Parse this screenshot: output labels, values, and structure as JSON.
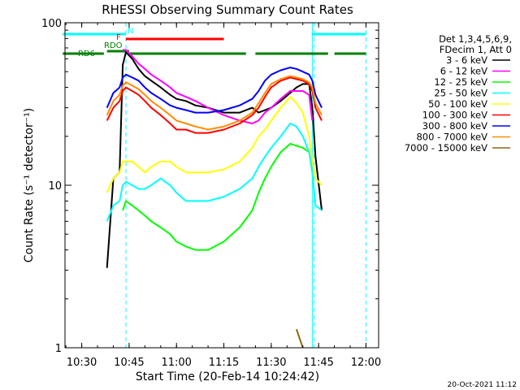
{
  "chart_data": {
    "type": "line",
    "title": "RHESSI Observing Summary Count Rates",
    "xlabel": "Start Time (20-Feb-14 10:24:42)",
    "ylabel": "Count Rate (s⁻¹ detector⁻¹)",
    "yscale": "log",
    "ylim": [
      1,
      100
    ],
    "xlim": [
      "10:24:42",
      "12:04:00"
    ],
    "x_ticks": [
      "10:30",
      "10:45",
      "11:00",
      "11:15",
      "11:30",
      "11:45",
      "12:00"
    ],
    "y_ticks": [
      "1",
      "10",
      "100"
    ],
    "grid": false,
    "legend_position": "right",
    "legend_header": [
      "Det 1,3,4,5,6,9,",
      "FDecim 1, Att 0"
    ],
    "timestamp": "20-Oct-2021 11:12",
    "x_times": [
      "10:38",
      "10:40",
      "10:42",
      "10:43",
      "10:44",
      "10:46",
      "10:48",
      "10:50",
      "10:52",
      "10:55",
      "10:58",
      "11:00",
      "11:03",
      "11:06",
      "11:10",
      "11:15",
      "11:20",
      "11:24",
      "11:26",
      "11:28",
      "11:30",
      "11:33",
      "11:36",
      "11:38",
      "11:40",
      "11:42",
      "11:43",
      "11:44",
      "11:46"
    ],
    "series": [
      {
        "name": "3 - 6 keV",
        "color": "#000000",
        "values": [
          3.1,
          11,
          12,
          55,
          66,
          60,
          52,
          47,
          44,
          40,
          36,
          34,
          33,
          31,
          30,
          28,
          28,
          30,
          28,
          29,
          30,
          33,
          37,
          40,
          42,
          42,
          30,
          15,
          7
        ]
      },
      {
        "name": "6 - 12 keV",
        "color": "#ff00ff",
        "values": [
          null,
          null,
          null,
          68,
          68,
          62,
          56,
          52,
          48,
          44,
          40,
          37,
          35,
          33,
          30,
          27,
          25,
          24,
          25,
          28,
          30,
          34,
          38,
          38,
          38,
          36,
          25,
          null,
          null
        ]
      },
      {
        "name": "12 - 25 keV",
        "color": "#00ff00",
        "values": [
          null,
          null,
          null,
          7,
          8,
          7.5,
          7,
          6.5,
          6,
          5.5,
          5,
          4.5,
          4.2,
          4,
          4,
          4.5,
          5.5,
          7,
          9,
          11,
          13,
          16,
          18,
          17.5,
          17,
          16,
          12,
          null,
          null
        ]
      },
      {
        "name": "25 - 50 keV",
        "color": "#00ffff",
        "values": [
          6,
          7.5,
          8,
          10,
          10.5,
          10,
          9.5,
          9.5,
          10,
          11,
          10,
          9,
          8,
          8,
          8,
          8.5,
          9.5,
          11,
          13,
          15,
          17,
          20,
          24,
          23,
          20,
          16,
          12,
          7.5,
          7
        ]
      },
      {
        "name": "50 - 100 keV",
        "color": "#ffff00",
        "values": [
          9,
          11,
          12,
          14,
          14,
          14,
          13,
          12,
          13,
          14,
          14,
          13,
          12,
          12,
          12,
          12.5,
          14,
          17,
          20,
          22,
          25,
          30,
          35,
          32,
          28,
          20,
          14,
          11,
          10
        ]
      },
      {
        "name": "100 - 300 keV",
        "color": "#ff0000",
        "values": [
          25,
          30,
          33,
          38,
          40,
          38,
          36,
          33,
          30,
          27,
          24,
          22,
          22,
          21,
          21,
          22,
          24,
          27,
          30,
          35,
          40,
          44,
          46,
          45,
          44,
          42,
          38,
          30,
          25
        ]
      },
      {
        "name": "300 - 800 keV",
        "color": "#0000ff",
        "values": [
          30,
          37,
          40,
          46,
          48,
          46,
          44,
          40,
          37,
          34,
          31,
          30,
          29,
          28,
          28,
          29,
          31,
          34,
          38,
          44,
          48,
          51,
          53,
          52,
          50,
          48,
          44,
          36,
          30
        ]
      },
      {
        "name": "800 - 7000 keV",
        "color": "#ff8c00",
        "values": [
          27,
          33,
          36,
          41,
          43,
          41,
          39,
          36,
          33,
          30,
          27,
          25,
          24,
          23,
          22,
          23,
          25,
          28,
          32,
          37,
          42,
          45,
          47,
          46,
          45,
          43,
          40,
          32,
          27
        ]
      },
      {
        "name": "7000 - 15000 keV",
        "color": "#8b6914",
        "values": [
          null,
          null,
          null,
          null,
          null,
          null,
          null,
          null,
          null,
          null,
          null,
          null,
          null,
          null,
          null,
          null,
          null,
          null,
          null,
          null,
          null,
          null,
          null,
          1.3,
          1,
          null,
          null,
          null,
          null
        ]
      }
    ],
    "annotations": {
      "flags": [
        {
          "label": "N",
          "color": "#00ffff",
          "segments": [
            [
              "10:24",
              "10:44"
            ],
            [
              "11:43",
              "12:00"
            ]
          ]
        },
        {
          "label": "F",
          "color": "#ff0000",
          "segments": [
            [
              "10:44",
              "11:15"
            ]
          ]
        },
        {
          "label": "RDO",
          "color": "#008000",
          "segments": [
            [
              "10:38",
              "10:45"
            ]
          ]
        },
        {
          "label": "RD6",
          "color": "#008000",
          "segments": [
            [
              "10:24",
              "10:37"
            ],
            [
              "10:45",
              "10:58"
            ],
            [
              "10:58",
              "11:22"
            ],
            [
              "11:25",
              "11:48"
            ],
            [
              "11:50",
              "12:00"
            ]
          ]
        }
      ],
      "night_bounds": [
        "10:44",
        "11:43",
        "12:00"
      ]
    }
  }
}
